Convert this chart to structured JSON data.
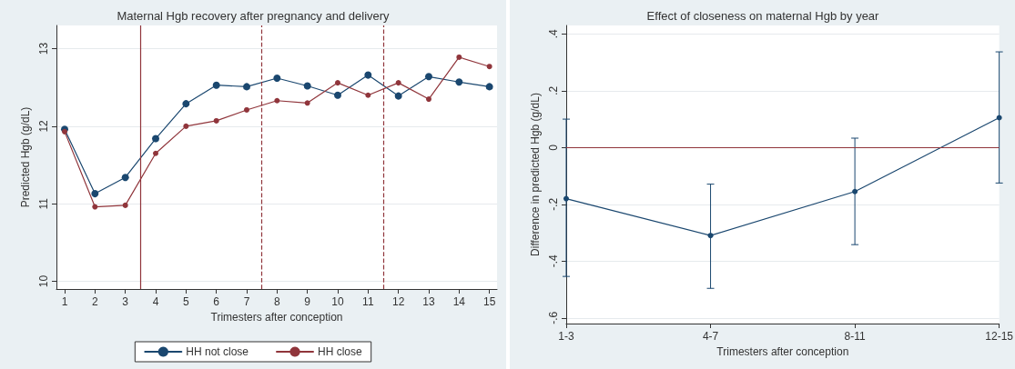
{
  "chart_data": [
    {
      "type": "line",
      "title": "Maternal Hgb recovery after pregnancy and delivery",
      "xlabel": "Trimesters after conception",
      "ylabel": "Predicted Hgb (g/dL)",
      "x": [
        1,
        2,
        3,
        4,
        5,
        6,
        7,
        8,
        9,
        10,
        11,
        12,
        13,
        14,
        15
      ],
      "series": [
        {
          "name": "HH not close",
          "color": "#1a476f",
          "values": [
            11.96,
            11.13,
            11.34,
            11.84,
            12.29,
            12.53,
            12.51,
            12.62,
            12.52,
            12.4,
            12.66,
            12.39,
            12.64,
            12.57,
            12.51
          ]
        },
        {
          "name": "HH close",
          "color": "#90353b",
          "values": [
            11.93,
            10.96,
            10.98,
            11.65,
            12.0,
            12.07,
            12.21,
            12.33,
            12.3,
            12.56,
            12.4,
            12.56,
            12.35,
            12.89,
            12.77
          ]
        }
      ],
      "xlim": [
        0.73,
        15.25
      ],
      "xticks": [
        1,
        2,
        3,
        4,
        5,
        6,
        7,
        8,
        9,
        10,
        11,
        12,
        13,
        14,
        15
      ],
      "ylim": [
        9.9,
        13.3
      ],
      "yticks": [
        10,
        11,
        12,
        13
      ],
      "ref_lines": [
        {
          "axis": "x",
          "value": 3.5,
          "color": "#90353b",
          "line_style": "solid"
        },
        {
          "axis": "x",
          "value": 7.5,
          "color": "#90353b",
          "line_style": "dashed"
        },
        {
          "axis": "x",
          "value": 11.5,
          "color": "#90353b",
          "line_style": "dashed"
        }
      ],
      "grid": "y",
      "legend": "bottom",
      "marker": "circle",
      "line_style": "solid"
    },
    {
      "type": "line",
      "title": "Effect of closeness on maternal Hgb by year",
      "xlabel": "Trimesters after conception",
      "ylabel": "Difference in predicted Hgb (g/dL)",
      "categories": [
        "1-3",
        "4-7",
        "8-11",
        "12-15"
      ],
      "series": [
        {
          "color": "#1a476f",
          "values": [
            -0.18,
            -0.31,
            -0.155,
            0.105
          ],
          "errors": [
            [
              -0.454,
              0.1
            ],
            [
              -0.496,
              -0.129
            ],
            [
              -0.342,
              0.033
            ],
            [
              -0.125,
              0.337
            ]
          ]
        }
      ],
      "ylim": [
        -0.62,
        0.43
      ],
      "yticks": [
        {
          "value": -0.6,
          "label": "-.6"
        },
        {
          "value": -0.4,
          "label": "-.4"
        },
        {
          "value": -0.2,
          "label": "-.2"
        },
        {
          "value": 0,
          "label": "0"
        },
        {
          "value": 0.2,
          "label": ".2"
        },
        {
          "value": 0.4,
          "label": ".4"
        }
      ],
      "ref_lines": [
        {
          "axis": "y",
          "value": 0,
          "color": "#90353b",
          "line_style": "solid"
        }
      ],
      "grid": "y",
      "legend": false,
      "marker": "circle",
      "line_style": "solid"
    }
  ]
}
